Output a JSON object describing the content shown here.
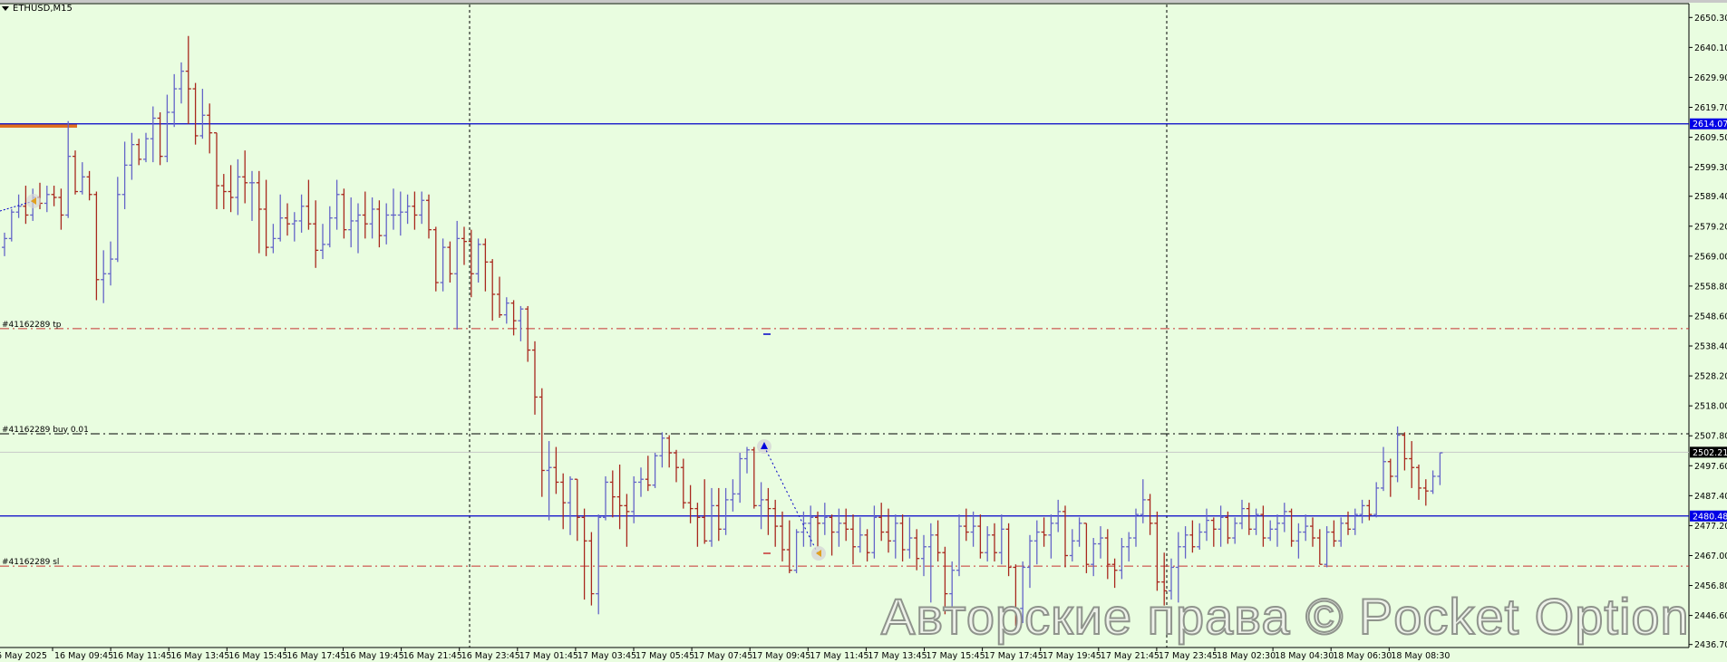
{
  "header": {
    "symbol": "ETHUSD,M15"
  },
  "orders": {
    "tp_label": "#41162289 tp",
    "buy_label": "#41162289 buy 0.01",
    "sl_label": "#41162289 sl"
  },
  "watermark": "Авторские права © Pocket Option",
  "colors": {
    "background": "#e9fde0",
    "bull": "#6464c8",
    "bear": "#a8281e",
    "hline": "#0000c8",
    "order_line": "#c83232",
    "entry_line": "#000000",
    "current_price": "#c8c8c8"
  },
  "chart_data": {
    "type": "ohlc",
    "title": "ETHUSD,M15",
    "ylim": [
      2436.7,
      2650.3
    ],
    "y_ticks": [
      "2650.30",
      "2640.10",
      "2629.90",
      "2619.70",
      "2609.50",
      "2599.30",
      "2589.40",
      "2579.20",
      "2569.00",
      "2558.80",
      "2548.60",
      "2538.40",
      "2528.20",
      "2518.00",
      "2507.80",
      "2497.60",
      "2487.40",
      "2477.20",
      "2467.00",
      "2456.80",
      "2446.60",
      "2436.70"
    ],
    "x_ticks": [
      "6 May 2025",
      "16 May 09:45",
      "16 May 11:45",
      "16 May 13:45",
      "16 May 15:45",
      "16 May 17:45",
      "16 May 19:45",
      "16 May 21:45",
      "16 May 23:45",
      "17 May 01:45",
      "17 May 03:45",
      "17 May 05:45",
      "17 May 07:45",
      "17 May 09:45",
      "17 May 11:45",
      "17 May 13:45",
      "17 May 15:45",
      "17 May 17:45",
      "17 May 19:45",
      "17 May 21:45",
      "17 May 23:45",
      "18 May 02:30",
      "18 May 04:30",
      "18 May 06:30",
      "18 May 08:30"
    ],
    "horizontal_lines": [
      {
        "price": 2614.07,
        "label": "2614.07",
        "style": "solid",
        "color": "#0000c8"
      },
      {
        "price": 2480.48,
        "label": "2480.48",
        "style": "solid",
        "color": "#0000c8"
      },
      {
        "price": 2502.21,
        "label": "2502.21",
        "style": "current",
        "color": "#c8c8c8"
      },
      {
        "price": 2544.3,
        "style": "tp",
        "color": "#c83232"
      },
      {
        "price": 2508.5,
        "style": "entry",
        "color": "#000000"
      },
      {
        "price": 2463.4,
        "style": "sl",
        "color": "#c83232"
      }
    ],
    "bars": [
      [
        2572,
        2577,
        2569,
        2575
      ],
      [
        2575,
        2585,
        2574,
        2584
      ],
      [
        2584,
        2590,
        2582,
        2586
      ],
      [
        2586,
        2593,
        2580,
        2583
      ],
      [
        2583,
        2592,
        2581,
        2589
      ],
      [
        2589,
        2594,
        2585,
        2587
      ],
      [
        2587,
        2593,
        2584,
        2590
      ],
      [
        2590,
        2593,
        2586,
        2589
      ],
      [
        2589,
        2592,
        2578,
        2583
      ],
      [
        2583,
        2615,
        2582,
        2603
      ],
      [
        2603,
        2605,
        2590,
        2591
      ],
      [
        2591,
        2601,
        2590,
        2596
      ],
      [
        2596,
        2598,
        2588,
        2590
      ],
      [
        2590,
        2591,
        2554,
        2561
      ],
      [
        2561,
        2571,
        2553,
        2563
      ],
      [
        2563,
        2574,
        2559,
        2568
      ],
      [
        2568,
        2596,
        2567,
        2590
      ],
      [
        2590,
        2608,
        2585,
        2600
      ],
      [
        2600,
        2611,
        2595,
        2607
      ],
      [
        2607,
        2609,
        2600,
        2602
      ],
      [
        2602,
        2611,
        2601,
        2609
      ],
      [
        2609,
        2620,
        2601,
        2616
      ],
      [
        2616,
        2618,
        2600,
        2603
      ],
      [
        2603,
        2624,
        2601,
        2618
      ],
      [
        2618,
        2631,
        2613,
        2626
      ],
      [
        2626,
        2635,
        2621,
        2632
      ],
      [
        2632,
        2644,
        2614,
        2626
      ],
      [
        2626,
        2628,
        2607,
        2610
      ],
      [
        2610,
        2626,
        2609,
        2617
      ],
      [
        2617,
        2621,
        2604,
        2611
      ],
      [
        2611,
        2611,
        2585,
        2593
      ],
      [
        2593,
        2597,
        2585,
        2591
      ],
      [
        2591,
        2600,
        2584,
        2589
      ],
      [
        2589,
        2602,
        2583,
        2596
      ],
      [
        2596,
        2605,
        2587,
        2594
      ],
      [
        2594,
        2598,
        2581,
        2594
      ],
      [
        2594,
        2598,
        2570,
        2585
      ],
      [
        2585,
        2595,
        2569,
        2572
      ],
      [
        2572,
        2580,
        2570,
        2575
      ],
      [
        2575,
        2590,
        2574,
        2582
      ],
      [
        2582,
        2587,
        2576,
        2580
      ],
      [
        2580,
        2584,
        2574,
        2581
      ],
      [
        2581,
        2590,
        2577,
        2586
      ],
      [
        2586,
        2595,
        2578,
        2580
      ],
      [
        2580,
        2588,
        2565,
        2571
      ],
      [
        2571,
        2580,
        2568,
        2573
      ],
      [
        2573,
        2586,
        2572,
        2582
      ],
      [
        2582,
        2595,
        2578,
        2590
      ],
      [
        2590,
        2592,
        2575,
        2578
      ],
      [
        2578,
        2589,
        2572,
        2581
      ],
      [
        2581,
        2587,
        2570,
        2583
      ],
      [
        2583,
        2591,
        2575,
        2580
      ],
      [
        2580,
        2589,
        2575,
        2585
      ],
      [
        2585,
        2588,
        2572,
        2576
      ],
      [
        2576,
        2587,
        2573,
        2583
      ],
      [
        2583,
        2592,
        2578,
        2583
      ],
      [
        2583,
        2591,
        2576,
        2584
      ],
      [
        2584,
        2590,
        2580,
        2586
      ],
      [
        2586,
        2591,
        2578,
        2583
      ],
      [
        2583,
        2591,
        2580,
        2588
      ],
      [
        2588,
        2590,
        2575,
        2578
      ],
      [
        2578,
        2579,
        2557,
        2560
      ],
      [
        2560,
        2575,
        2557,
        2572
      ],
      [
        2572,
        2574,
        2560,
        2563
      ],
      [
        2563,
        2581,
        2544,
        2575
      ],
      [
        2575,
        2579,
        2566,
        2574
      ],
      [
        2574,
        2578,
        2555,
        2563
      ],
      [
        2563,
        2575,
        2560,
        2573
      ],
      [
        2573,
        2575,
        2557,
        2567
      ],
      [
        2567,
        2568,
        2547,
        2556
      ],
      [
        2556,
        2562,
        2548,
        2549
      ],
      [
        2549,
        2555,
        2546,
        2553
      ],
      [
        2553,
        2554,
        2542,
        2547
      ],
      [
        2547,
        2552,
        2540,
        2551
      ],
      [
        2551,
        2552,
        2533,
        2537
      ],
      [
        2537,
        2540,
        2515,
        2521
      ],
      [
        2521,
        2524,
        2487,
        2496
      ],
      [
        2496,
        2506,
        2479,
        2497
      ],
      [
        2497,
        2504,
        2488,
        2492
      ],
      [
        2492,
        2495,
        2476,
        2485
      ],
      [
        2485,
        2494,
        2474,
        2493
      ],
      [
        2493,
        2493,
        2472,
        2480
      ],
      [
        2480,
        2483,
        2452,
        2472
      ],
      [
        2472,
        2475,
        2450,
        2454
      ],
      [
        2454,
        2481,
        2447,
        2480
      ],
      [
        2480,
        2494,
        2479,
        2492
      ],
      [
        2492,
        2496,
        2480,
        2487
      ],
      [
        2487,
        2498,
        2476,
        2484
      ],
      [
        2484,
        2488,
        2470,
        2482
      ],
      [
        2482,
        2494,
        2478,
        2492
      ],
      [
        2492,
        2497,
        2487,
        2493
      ],
      [
        2493,
        2501,
        2489,
        2491
      ],
      [
        2491,
        2502,
        2490,
        2501
      ],
      [
        2501,
        2509,
        2497,
        2507
      ],
      [
        2507,
        2508,
        2497,
        2502
      ],
      [
        2502,
        2503,
        2492,
        2497
      ],
      [
        2497,
        2500,
        2483,
        2485
      ],
      [
        2485,
        2491,
        2478,
        2483
      ],
      [
        2483,
        2485,
        2470,
        2480
      ],
      [
        2480,
        2493,
        2471,
        2472
      ],
      [
        2472,
        2490,
        2470,
        2484
      ],
      [
        2484,
        2490,
        2472,
        2476
      ],
      [
        2476,
        2490,
        2474,
        2486
      ],
      [
        2486,
        2493,
        2482,
        2488
      ],
      [
        2488,
        2502,
        2485,
        2500
      ],
      [
        2500,
        2504,
        2495,
        2503
      ],
      [
        2503,
        2504,
        2483,
        2484
      ],
      [
        2484,
        2492,
        2476,
        2486
      ],
      [
        2486,
        2490,
        2474,
        2483
      ],
      [
        2483,
        2486,
        2470,
        2477
      ],
      [
        2477,
        2482,
        2465,
        2469
      ],
      [
        2469,
        2479,
        2461,
        2462
      ],
      [
        2462,
        2476,
        2461,
        2475
      ],
      [
        2475,
        2482,
        2470,
        2478
      ],
      [
        2478,
        2484,
        2470,
        2480
      ],
      [
        2480,
        2482,
        2470,
        2478
      ],
      [
        2478,
        2485,
        2474,
        2480
      ],
      [
        2480,
        2481,
        2467,
        2475
      ],
      [
        2475,
        2483,
        2470,
        2478
      ],
      [
        2478,
        2483,
        2472,
        2476
      ],
      [
        2476,
        2481,
        2464,
        2470
      ],
      [
        2470,
        2480,
        2468,
        2474
      ],
      [
        2474,
        2476,
        2465,
        2468
      ],
      [
        2468,
        2484,
        2466,
        2480
      ],
      [
        2480,
        2485,
        2472,
        2475
      ],
      [
        2475,
        2483,
        2468,
        2472
      ],
      [
        2472,
        2481,
        2466,
        2478
      ],
      [
        2478,
        2481,
        2465,
        2469
      ],
      [
        2469,
        2480,
        2466,
        2473
      ],
      [
        2473,
        2476,
        2462,
        2466
      ],
      [
        2466,
        2474,
        2460,
        2470
      ],
      [
        2470,
        2478,
        2451,
        2474
      ],
      [
        2474,
        2479,
        2465,
        2468
      ],
      [
        2468,
        2470,
        2447,
        2454
      ],
      [
        2454,
        2465,
        2446,
        2462
      ],
      [
        2462,
        2481,
        2460,
        2477
      ],
      [
        2477,
        2483,
        2472,
        2475
      ],
      [
        2475,
        2482,
        2470,
        2477
      ],
      [
        2477,
        2481,
        2466,
        2468
      ],
      [
        2468,
        2477,
        2465,
        2474
      ],
      [
        2474,
        2478,
        2465,
        2468
      ],
      [
        2468,
        2481,
        2464,
        2476
      ],
      [
        2476,
        2478,
        2460,
        2463
      ],
      [
        2463,
        2464,
        2443,
        2449
      ],
      [
        2449,
        2465,
        2444,
        2463
      ],
      [
        2463,
        2474,
        2456,
        2472
      ],
      [
        2472,
        2479,
        2464,
        2475
      ],
      [
        2475,
        2480,
        2470,
        2474
      ],
      [
        2474,
        2481,
        2466,
        2478
      ],
      [
        2478,
        2486,
        2475,
        2482
      ],
      [
        2482,
        2484,
        2463,
        2467
      ],
      [
        2467,
        2476,
        2465,
        2472
      ],
      [
        2472,
        2480,
        2470,
        2478
      ],
      [
        2478,
        2478,
        2461,
        2464
      ],
      [
        2464,
        2473,
        2460,
        2471
      ],
      [
        2471,
        2477,
        2466,
        2473
      ],
      [
        2473,
        2476,
        2459,
        2464
      ],
      [
        2464,
        2466,
        2456,
        2462
      ],
      [
        2462,
        2473,
        2459,
        2470
      ],
      [
        2470,
        2475,
        2465,
        2473
      ],
      [
        2473,
        2483,
        2470,
        2481
      ],
      [
        2481,
        2493,
        2478,
        2486
      ],
      [
        2486,
        2488,
        2474,
        2478
      ],
      [
        2478,
        2482,
        2455,
        2458
      ],
      [
        2458,
        2468,
        2450,
        2455
      ],
      [
        2455,
        2466,
        2452,
        2463
      ],
      [
        2463,
        2475,
        2451,
        2470
      ],
      [
        2470,
        2477,
        2466,
        2474
      ],
      [
        2474,
        2479,
        2468,
        2470
      ],
      [
        2470,
        2478,
        2469,
        2475
      ],
      [
        2475,
        2483,
        2472,
        2479
      ],
      [
        2479,
        2480,
        2470,
        2476
      ],
      [
        2476,
        2484,
        2470,
        2480
      ],
      [
        2480,
        2482,
        2471,
        2473
      ],
      [
        2473,
        2480,
        2471,
        2478
      ],
      [
        2478,
        2486,
        2476,
        2483
      ],
      [
        2483,
        2485,
        2474,
        2476
      ],
      [
        2476,
        2483,
        2474,
        2481
      ],
      [
        2481,
        2484,
        2470,
        2473
      ],
      [
        2473,
        2479,
        2472,
        2476
      ],
      [
        2476,
        2481,
        2470,
        2478
      ],
      [
        2478,
        2485,
        2475,
        2482
      ],
      [
        2482,
        2483,
        2470,
        2472
      ],
      [
        2472,
        2478,
        2466,
        2475
      ],
      [
        2475,
        2481,
        2472,
        2477
      ],
      [
        2477,
        2480,
        2470,
        2473
      ],
      [
        2473,
        2476,
        2464,
        2464
      ],
      [
        2464,
        2477,
        2463,
        2475
      ],
      [
        2475,
        2479,
        2470,
        2472
      ],
      [
        2472,
        2480,
        2470,
        2478
      ],
      [
        2478,
        2482,
        2474,
        2476
      ],
      [
        2476,
        2483,
        2474,
        2481
      ],
      [
        2481,
        2486,
        2478,
        2484
      ],
      [
        2484,
        2486,
        2479,
        2481
      ],
      [
        2481,
        2492,
        2480,
        2490
      ],
      [
        2490,
        2504,
        2489,
        2499
      ],
      [
        2499,
        2500,
        2487,
        2494
      ],
      [
        2494,
        2511,
        2492,
        2508
      ],
      [
        2508,
        2509,
        2496,
        2500
      ],
      [
        2500,
        2506,
        2490,
        2497
      ],
      [
        2497,
        2498,
        2486,
        2490
      ],
      [
        2490,
        2493,
        2484,
        2489
      ],
      [
        2489,
        2496,
        2488,
        2494
      ],
      [
        2494,
        2502,
        2491,
        2502
      ]
    ]
  }
}
